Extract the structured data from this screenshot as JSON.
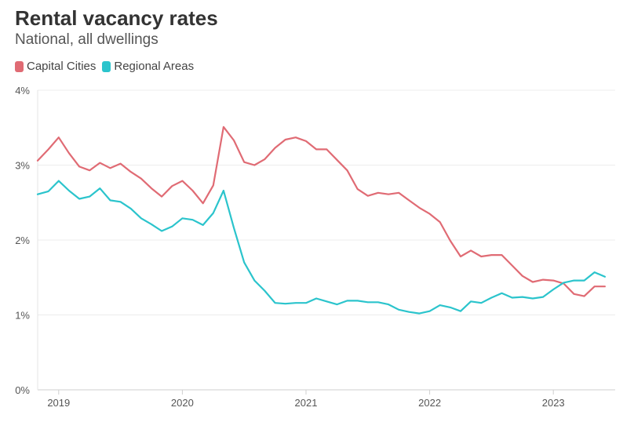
{
  "chart_data": {
    "type": "line",
    "title": "Rental vacancy rates",
    "subtitle": "National, all dwellings",
    "xlabel": "",
    "ylabel": "",
    "ylim": [
      0,
      4
    ],
    "y_ticks": [
      "0%",
      "1%",
      "2%",
      "3%",
      "4%"
    ],
    "y_tick_values": [
      0,
      1,
      2,
      3,
      4
    ],
    "x_ticks": [
      "2019",
      "2020",
      "2021",
      "2022",
      "2023"
    ],
    "x_tick_values": [
      2019,
      2020,
      2021,
      2022,
      2023
    ],
    "xlim": [
      2018.83,
      2023.5
    ],
    "grid": true,
    "legend_position": "top-left",
    "series": [
      {
        "name": "Capital Cities",
        "color": "#e06b74",
        "x": [
          2018.83,
          2018.917,
          2019.0,
          2019.083,
          2019.167,
          2019.25,
          2019.333,
          2019.417,
          2019.5,
          2019.583,
          2019.667,
          2019.75,
          2019.833,
          2019.917,
          2020.0,
          2020.083,
          2020.167,
          2020.25,
          2020.333,
          2020.417,
          2020.5,
          2020.583,
          2020.667,
          2020.75,
          2020.833,
          2020.917,
          2021.0,
          2021.083,
          2021.167,
          2021.25,
          2021.333,
          2021.417,
          2021.5,
          2021.583,
          2021.667,
          2021.75,
          2021.833,
          2021.917,
          2022.0,
          2022.083,
          2022.167,
          2022.25,
          2022.333,
          2022.417,
          2022.5,
          2022.583,
          2022.667,
          2022.75,
          2022.833,
          2022.917,
          2023.0,
          2023.083,
          2023.167,
          2023.25,
          2023.333,
          2023.417
        ],
        "values": [
          3.06,
          3.21,
          3.37,
          3.16,
          2.98,
          2.93,
          3.03,
          2.96,
          3.02,
          2.91,
          2.82,
          2.69,
          2.58,
          2.72,
          2.79,
          2.66,
          2.49,
          2.73,
          3.51,
          3.33,
          3.04,
          3.0,
          3.08,
          3.23,
          3.34,
          3.37,
          3.32,
          3.21,
          3.21,
          3.07,
          2.93,
          2.68,
          2.59,
          2.63,
          2.61,
          2.63,
          2.53,
          2.43,
          2.35,
          2.24,
          1.99,
          1.78,
          1.86,
          1.78,
          1.8,
          1.8,
          1.66,
          1.52,
          1.44,
          1.47,
          1.46,
          1.42,
          1.28,
          1.25,
          1.38,
          1.38
        ]
      },
      {
        "name": "Regional Areas",
        "color": "#2bc4cc",
        "x": [
          2018.83,
          2018.917,
          2019.0,
          2019.083,
          2019.167,
          2019.25,
          2019.333,
          2019.417,
          2019.5,
          2019.583,
          2019.667,
          2019.75,
          2019.833,
          2019.917,
          2020.0,
          2020.083,
          2020.167,
          2020.25,
          2020.333,
          2020.417,
          2020.5,
          2020.583,
          2020.667,
          2020.75,
          2020.833,
          2020.917,
          2021.0,
          2021.083,
          2021.167,
          2021.25,
          2021.333,
          2021.417,
          2021.5,
          2021.583,
          2021.667,
          2021.75,
          2021.833,
          2021.917,
          2022.0,
          2022.083,
          2022.167,
          2022.25,
          2022.333,
          2022.417,
          2022.5,
          2022.583,
          2022.667,
          2022.75,
          2022.833,
          2022.917,
          2023.0,
          2023.083,
          2023.167,
          2023.25,
          2023.333,
          2023.417
        ],
        "values": [
          2.61,
          2.65,
          2.79,
          2.66,
          2.55,
          2.58,
          2.69,
          2.53,
          2.51,
          2.42,
          2.29,
          2.21,
          2.12,
          2.18,
          2.29,
          2.27,
          2.2,
          2.36,
          2.66,
          2.16,
          1.7,
          1.46,
          1.32,
          1.16,
          1.15,
          1.16,
          1.16,
          1.22,
          1.18,
          1.14,
          1.19,
          1.19,
          1.17,
          1.17,
          1.14,
          1.07,
          1.04,
          1.02,
          1.05,
          1.13,
          1.1,
          1.05,
          1.18,
          1.16,
          1.23,
          1.29,
          1.23,
          1.24,
          1.22,
          1.24,
          1.34,
          1.43,
          1.46,
          1.46,
          1.57,
          1.51
        ]
      }
    ]
  }
}
